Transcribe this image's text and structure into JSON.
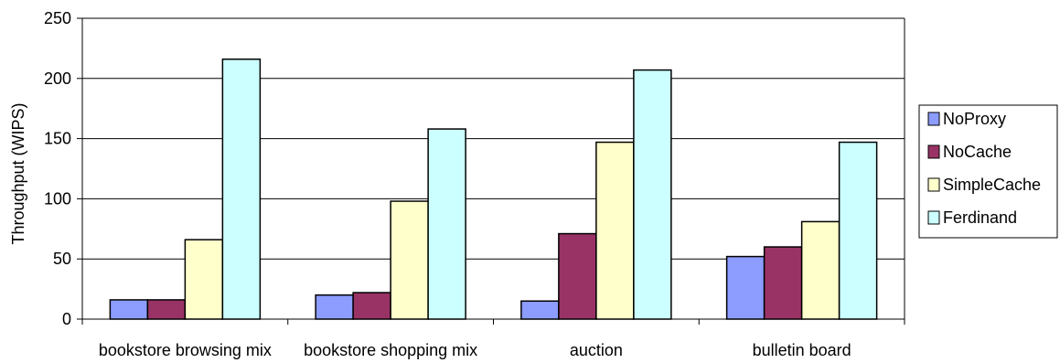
{
  "chart_data": {
    "type": "bar",
    "categories": [
      "bookstore browsing mix",
      "bookstore shopping mix",
      "auction",
      "bulletin board"
    ],
    "series": [
      {
        "name": "NoProxy",
        "color": "#8c9cff",
        "values": [
          16,
          20,
          15,
          52
        ]
      },
      {
        "name": "NoCache",
        "color": "#993366",
        "values": [
          16,
          22,
          71,
          60
        ]
      },
      {
        "name": "SimpleCache",
        "color": "#ffffcc",
        "values": [
          66,
          98,
          147,
          81
        ]
      },
      {
        "name": "Ferdinand",
        "color": "#ccffff",
        "values": [
          216,
          158,
          207,
          147
        ]
      }
    ],
    "title": "",
    "xlabel": "",
    "ylabel": "Throughput (WIPS)",
    "ylim": [
      0,
      250
    ],
    "yticks": [
      0,
      50,
      100,
      150,
      200,
      250
    ],
    "grid": true,
    "legend_position": "right"
  }
}
